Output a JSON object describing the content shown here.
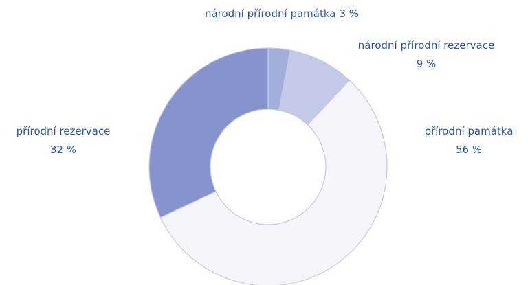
{
  "chart_data": {
    "type": "donut",
    "categories": [
      "národní přírodní památka",
      "národní přírodní rezervace",
      "přírodní památka",
      "přírodní rezervace"
    ],
    "values": [
      3,
      9,
      56,
      32
    ],
    "value_labels": [
      "3 %",
      "9 %",
      "56 %",
      "32 %"
    ],
    "colors": [
      "#a3aedb",
      "#c3c9e9",
      "#f5f6fb",
      "#8793cd"
    ]
  }
}
